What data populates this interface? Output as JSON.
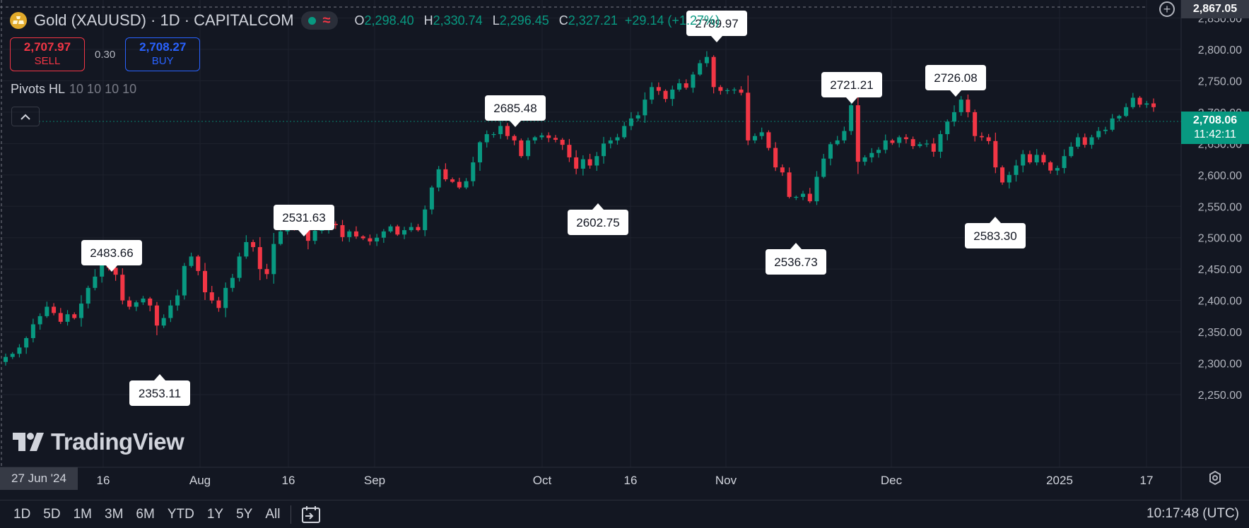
{
  "header": {
    "symbol_title": "Gold (XAUUSD) · 1D · CAPITALCOM",
    "ohlc": [
      {
        "key": "O",
        "value": "2,298.40"
      },
      {
        "key": "H",
        "value": "2,330.74"
      },
      {
        "key": "L",
        "value": "2,296.45"
      },
      {
        "key": "C",
        "value": "2,327.21"
      }
    ],
    "change": "+29.14 (+1.27%)"
  },
  "trade": {
    "sell_price": "2,707.97",
    "sell_label": "SELL",
    "spread": "0.30",
    "buy_price": "2,708.27",
    "buy_label": "BUY"
  },
  "indicator": {
    "name": "Pivots HL",
    "params": "10 10 10 10"
  },
  "watermark": "TradingView",
  "price_scale": {
    "top_label": "2,867.05",
    "last_price": "2,708.06",
    "countdown": "11:42:11",
    "ticks": [
      "2,850.00",
      "2,800.00",
      "2,750.00",
      "2,700.00",
      "2,650.00",
      "2,600.00",
      "2,550.00",
      "2,500.00",
      "2,450.00",
      "2,400.00",
      "2,350.00",
      "2,300.00",
      "2,250.00"
    ]
  },
  "time_axis": {
    "cursor_label": "27 Jun '24",
    "labels": [
      "16",
      "Aug",
      "16",
      "Sep",
      "Oct",
      "16",
      "Nov",
      "Dec",
      "2025",
      "17"
    ]
  },
  "bottom_bar": {
    "ranges": [
      "1D",
      "5D",
      "1M",
      "3M",
      "6M",
      "YTD",
      "1Y",
      "5Y",
      "All"
    ],
    "clock": "10:17:48 (UTC)"
  },
  "colors": {
    "up": "#089981",
    "down": "#f23645",
    "background": "#131722",
    "grid": "#1e222d",
    "text": "#d1d4dc"
  },
  "chart_data": {
    "type": "candlestick",
    "ylim": [
      2220,
      2867
    ],
    "yticks": [
      2250,
      2300,
      2350,
      2400,
      2450,
      2500,
      2550,
      2600,
      2650,
      2700,
      2750,
      2800,
      2850
    ],
    "close_series": [
      2310,
      2315,
      2325,
      2340,
      2362,
      2375,
      2390,
      2380,
      2366,
      2378,
      2372,
      2395,
      2420,
      2438,
      2466,
      2452,
      2441,
      2400,
      2390,
      2397,
      2403,
      2392,
      2360,
      2372,
      2392,
      2408,
      2455,
      2470,
      2447,
      2413,
      2400,
      2388,
      2420,
      2436,
      2470,
      2493,
      2485,
      2450,
      2442,
      2490,
      2510,
      2523,
      2516,
      2518,
      2495,
      2511,
      2515,
      2522,
      2520,
      2501,
      2510,
      2502,
      2499,
      2494,
      2500,
      2510,
      2518,
      2505,
      2512,
      2517,
      2512,
      2545,
      2580,
      2609,
      2593,
      2589,
      2580,
      2590,
      2620,
      2652,
      2665,
      2665,
      2678,
      2662,
      2655,
      2630,
      2655,
      2660,
      2663,
      2659,
      2656,
      2648,
      2628,
      2610,
      2625,
      2615,
      2630,
      2650,
      2655,
      2660,
      2678,
      2690,
      2695,
      2720,
      2740,
      2734,
      2721,
      2736,
      2746,
      2739,
      2760,
      2778,
      2788,
      2740,
      2734,
      2735,
      2736,
      2731,
      2655,
      2662,
      2668,
      2643,
      2612,
      2604,
      2565,
      2565,
      2570,
      2558,
      2597,
      2626,
      2649,
      2655,
      2670,
      2711,
      2621,
      2628,
      2635,
      2640,
      2655,
      2651,
      2660,
      2657,
      2646,
      2649,
      2650,
      2637,
      2665,
      2685,
      2700,
      2720,
      2700,
      2662,
      2660,
      2654,
      2612,
      2588,
      2600,
      2615,
      2633,
      2620,
      2632,
      2620,
      2607,
      2611,
      2630,
      2645,
      2660,
      2648,
      2660,
      2670,
      2672,
      2690,
      2694,
      2708,
      2723,
      2712,
      2714,
      2708
    ],
    "pivot_highs": [
      "2483.66",
      "2531.63",
      "2685.48",
      "2789.97",
      "2721.21",
      "2726.08"
    ],
    "pivot_lows": [
      "2353.11",
      "2602.75",
      "2536.73",
      "2583.30"
    ]
  }
}
